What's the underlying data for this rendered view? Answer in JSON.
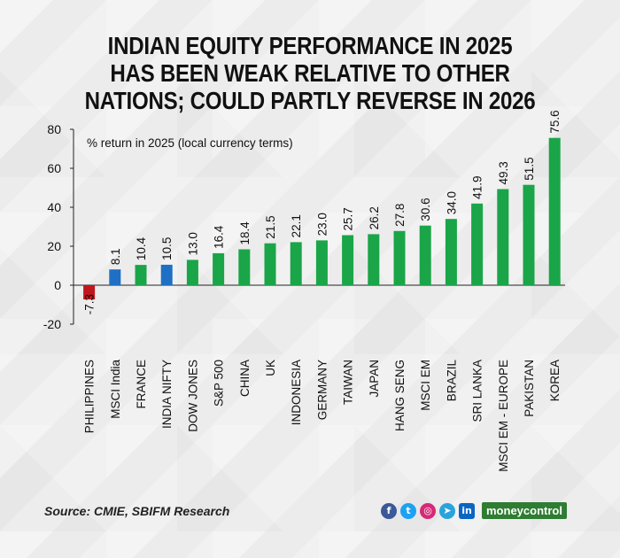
{
  "title_lines": [
    "INDIAN EQUITY PERFORMANCE IN 2025",
    "HAS BEEN WEAK RELATIVE TO OTHER",
    "NATIONS; COULD PARTLY REVERSE IN 2026"
  ],
  "footer": {
    "source": "Source: CMIE, SBIFM Research",
    "brand": "moneycontrol",
    "social_icons": [
      "facebook-icon",
      "twitter-icon",
      "instagram-icon",
      "telegram-icon",
      "linkedin-icon"
    ]
  },
  "colors": {
    "positive": "#1aa548",
    "india": "#1f6fc5",
    "negative": "#c0161d",
    "facebook": "#3b5998",
    "twitter": "#1da1f2",
    "instagram": "#d62976",
    "telegram": "#2aa3dd",
    "linkedin": "#0a66c2"
  },
  "chart_data": {
    "type": "bar",
    "annotation": "% return in 2025 (local currency terms)",
    "ylim": [
      -20,
      80
    ],
    "yticks": [
      -20,
      0,
      20,
      40,
      60,
      80
    ],
    "grid": false,
    "categories": [
      "PHILIPPINES",
      "MSCI India",
      "FRANCE",
      "INDIA NIFTY",
      "DOW JONES",
      "S&P 500",
      "CHINA",
      "UK",
      "INDONESIA",
      "GERMANY",
      "TAIWAN",
      "JAPAN",
      "HANG SENG",
      "MSCI EM",
      "BRAZIL",
      "SRI LANKA",
      "MSCI EM - EUROPE",
      "PAKISTAN",
      "KOREA"
    ],
    "values": [
      -7.3,
      8.1,
      10.4,
      10.5,
      13.0,
      16.4,
      18.4,
      21.5,
      22.1,
      23.0,
      25.7,
      26.2,
      27.8,
      30.6,
      34.0,
      41.9,
      49.3,
      51.5,
      75.6
    ],
    "value_labels": [
      "-7.3",
      "8.1",
      "10.4",
      "10.5",
      "13.0",
      "16.4",
      "18.4",
      "21.5",
      "22.1",
      "23.0",
      "25.7",
      "26.2",
      "27.8",
      "30.6",
      "34.0",
      "41.9",
      "49.3",
      "51.5",
      "75.6"
    ],
    "india_categories": [
      "MSCI India",
      "INDIA NIFTY"
    ]
  }
}
